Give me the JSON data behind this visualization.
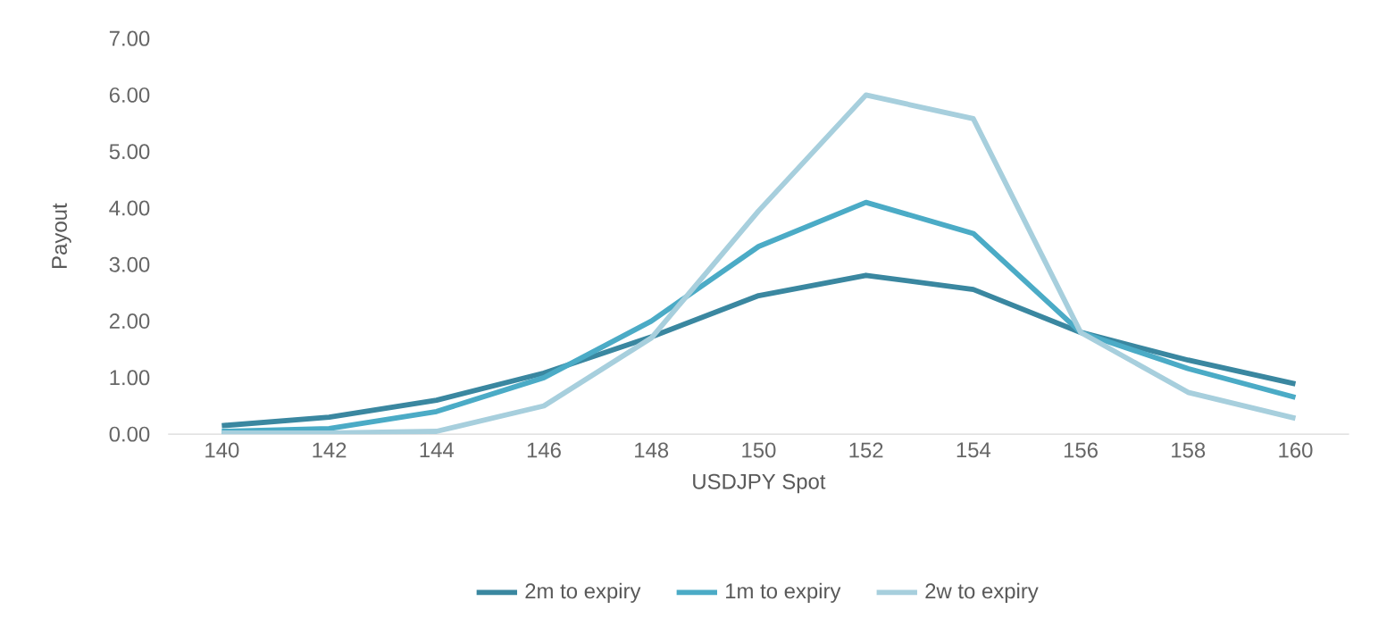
{
  "chart_data": {
    "type": "line",
    "xlabel": "USDJPY Spot",
    "ylabel": "Payout",
    "categories": [
      "140",
      "142",
      "144",
      "146",
      "148",
      "150",
      "152",
      "154",
      "156",
      "158",
      "160"
    ],
    "series": [
      {
        "name": "2m to expiry",
        "color": "#3a87a0",
        "values": [
          0.15,
          0.3,
          0.6,
          1.08,
          1.72,
          2.45,
          2.81,
          2.56,
          1.8,
          1.31,
          0.89
        ]
      },
      {
        "name": "1m to expiry",
        "color": "#4babc6",
        "values": [
          0.05,
          0.1,
          0.4,
          1.0,
          2.0,
          3.32,
          4.1,
          3.55,
          1.8,
          1.16,
          0.65
        ]
      },
      {
        "name": "2w to expiry",
        "color": "#a7cfdd",
        "values": [
          0.02,
          0.02,
          0.05,
          0.5,
          1.7,
          3.95,
          6.0,
          5.58,
          1.8,
          0.74,
          0.28
        ]
      }
    ],
    "ylim": [
      0,
      7
    ],
    "yticks": [
      {
        "value": 0,
        "label": "0.00"
      },
      {
        "value": 1,
        "label": "1.00"
      },
      {
        "value": 2,
        "label": "2.00"
      },
      {
        "value": 3,
        "label": "3.00"
      },
      {
        "value": 4,
        "label": "4.00"
      },
      {
        "value": 5,
        "label": "5.00"
      },
      {
        "value": 6,
        "label": "6.00"
      },
      {
        "value": 7,
        "label": "7.00"
      }
    ],
    "grid": false,
    "legend": "bottom",
    "marker": "none",
    "line_style": "solid"
  }
}
